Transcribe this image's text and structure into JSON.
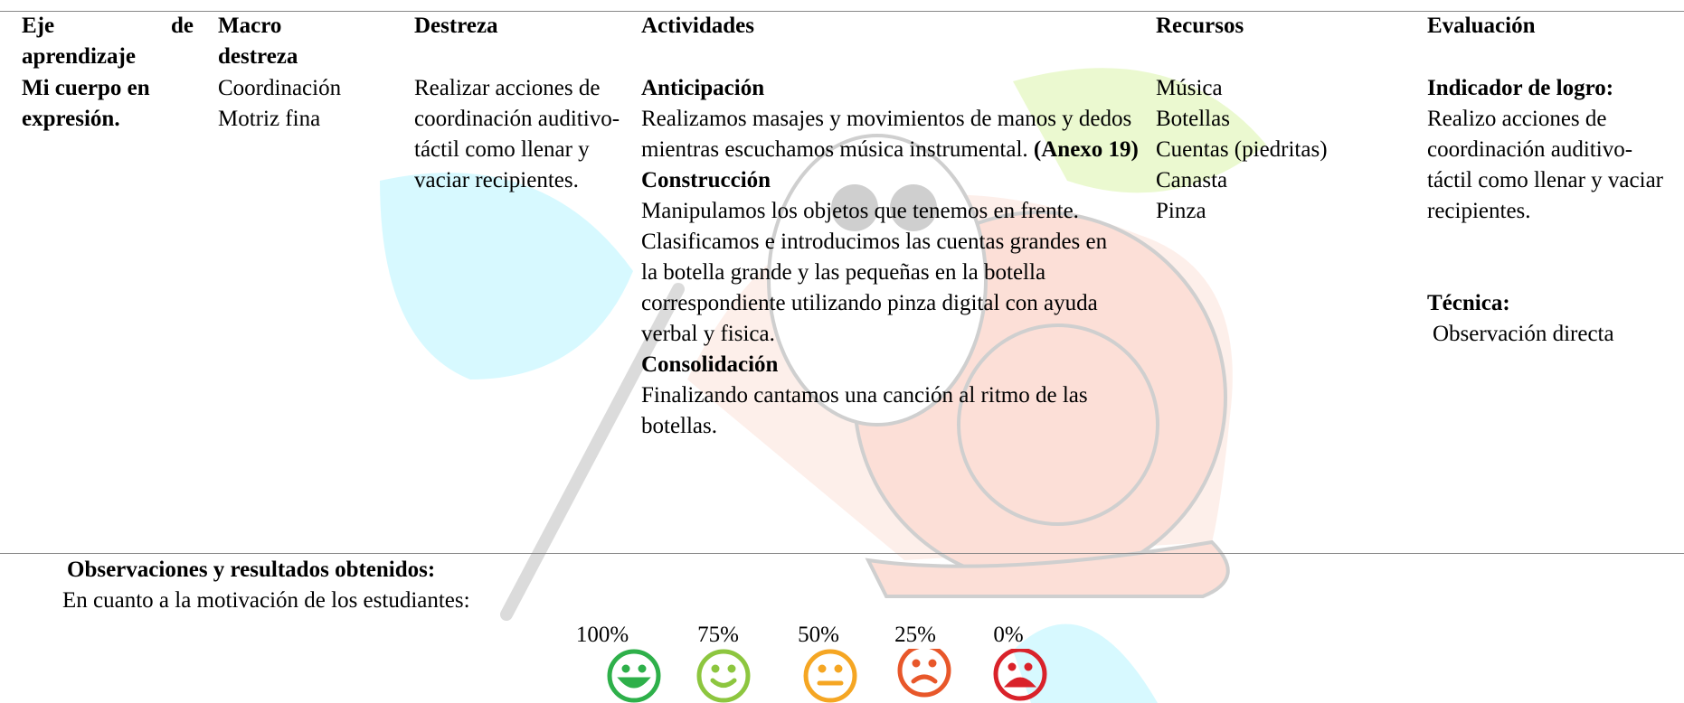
{
  "table": {
    "headers": [
      "Eje de aprendizaje",
      "Macro destreza",
      "Destreza",
      "Actividades",
      "Recursos",
      "Evaluación"
    ],
    "row": {
      "eje": "Mi cuerpo en expresión.",
      "macro": [
        "Coordinación",
        "Motriz fina"
      ],
      "destreza": "Realizar acciones de coordinación auditivo- táctil como llenar y vaciar  recipientes.",
      "actividades": {
        "anticipacion": {
          "title": "Anticipación",
          "text": "Realizamos masajes y movimientos de manos y dedos  mientras escuchamos música instrumental.",
          "annex": "(Anexo 19)"
        },
        "construccion": {
          "title": "Construcción",
          "texts": [
            "Manipulamos los objetos que tenemos en frente.",
            "Clasificamos e introducimos las cuentas grandes en la botella grande y las pequeñas en la botella correspondiente utilizando pinza digital con ayuda verbal y fisica."
          ]
        },
        "consolidacion": {
          "title": "Consolidación",
          "text": "Finalizando cantamos una canción al ritmo de las botellas."
        }
      },
      "recursos": [
        "Música",
        "Botellas",
        "Cuentas (piedritas)",
        "Canasta",
        "Pinza"
      ],
      "evaluacion": {
        "indicator_title": "Indicador de logro:",
        "indicator_text": "Realizo acciones de coordinación auditivo-táctil como llenar y vaciar  recipientes.",
        "technique_title": "Técnica:",
        "technique_text": "Observación directa"
      }
    }
  },
  "observations": {
    "title": "Observaciones y resultados obtenidos:",
    "text": "En cuanto a la motivación de los estudiantes:",
    "scale": [
      "100%",
      "75%",
      "50%",
      "25%",
      "0%"
    ]
  }
}
